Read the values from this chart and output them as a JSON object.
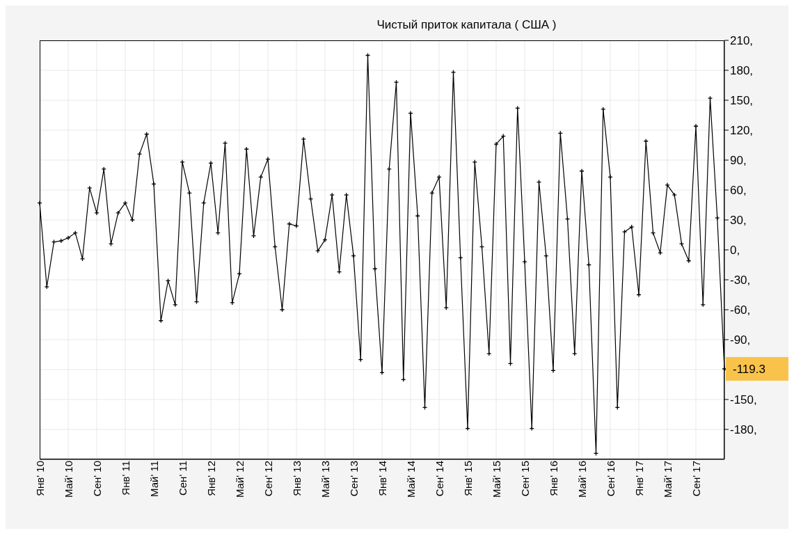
{
  "chart_data": {
    "type": "line",
    "title": "Чистый приток капитала ( США )",
    "categories": [
      "Янв' 10",
      null,
      null,
      null,
      "Май' 10",
      null,
      null,
      null,
      "Сен' 10",
      null,
      null,
      null,
      "Янв' 11",
      null,
      null,
      null,
      "Май' 11",
      null,
      null,
      null,
      "Сен' 11",
      null,
      null,
      null,
      "Янв' 12",
      null,
      null,
      null,
      "Май' 12",
      null,
      null,
      null,
      "Сен' 12",
      null,
      null,
      null,
      "Янв' 13",
      null,
      null,
      null,
      "Май' 13",
      null,
      null,
      null,
      "Сен' 13",
      null,
      null,
      null,
      "Янв' 14",
      null,
      null,
      null,
      "Май' 14",
      null,
      null,
      null,
      "Сен' 14",
      null,
      null,
      null,
      "Янв' 15",
      null,
      null,
      null,
      "Май' 15",
      null,
      null,
      null,
      "Сен' 15",
      null,
      null,
      null,
      "Янв' 16",
      null,
      null,
      null,
      "Май' 16",
      null,
      null,
      null,
      "Сен' 16",
      null,
      null,
      null,
      "Янв' 17",
      null,
      null,
      null,
      "Май' 17",
      null,
      null,
      null,
      "Сен' 17",
      null,
      null,
      null,
      null
    ],
    "series": [
      {
        "color": "#000000",
        "values": [
          47,
          -37,
          8,
          9,
          12,
          17,
          -9,
          62,
          37,
          81,
          6,
          37,
          47,
          30,
          96,
          116,
          66,
          -71,
          -31,
          -55,
          88,
          57,
          -52,
          47,
          87,
          17,
          107,
          -53,
          -24,
          101,
          14,
          73,
          91,
          3,
          -60,
          26,
          24,
          111,
          51,
          -1,
          10,
          55,
          -22,
          55,
          -6,
          -110,
          195,
          -19,
          -123,
          81,
          168,
          -130,
          137,
          34,
          -158,
          57,
          73,
          -58,
          178,
          -8,
          -179,
          88,
          3,
          -104,
          106,
          114,
          -114,
          142,
          -12,
          -179,
          68,
          -6,
          -121,
          117,
          31,
          -104,
          79,
          -15,
          -204,
          141,
          73,
          -158,
          18,
          23,
          -45,
          109,
          17,
          -3,
          65,
          55,
          6,
          -11,
          124,
          -55,
          152,
          32,
          -119.3
        ],
        "value_labels": [
          null,
          null,
          null,
          null,
          null,
          null,
          null,
          null,
          null,
          null,
          null,
          null,
          null,
          null,
          null,
          null,
          null,
          null,
          null,
          null,
          null,
          null,
          null,
          null,
          null,
          null,
          null,
          null,
          null,
          null,
          null,
          null,
          null,
          null,
          null,
          null,
          null,
          null,
          null,
          null,
          null,
          null,
          null,
          null,
          null,
          null,
          null,
          null,
          null,
          null,
          null,
          null,
          null,
          null,
          null,
          null,
          null,
          null,
          null,
          null,
          null,
          null,
          null,
          null,
          null,
          null,
          null,
          null,
          null,
          null,
          null,
          null,
          null,
          null,
          null,
          null,
          null,
          null,
          null,
          null,
          null,
          null,
          null,
          null,
          null,
          null,
          null,
          null,
          null,
          null,
          null,
          null,
          null,
          null,
          null,
          null,
          "-119.3"
        ]
      }
    ],
    "ylim": [
      -210,
      210
    ],
    "yticks": [
      {
        "value": -180,
        "label": "-180,"
      },
      {
        "value": -150,
        "label": "-150,"
      },
      {
        "value": -120,
        "label": null
      },
      {
        "value": -90,
        "label": "-90,"
      },
      {
        "value": -60,
        "label": "-60,"
      },
      {
        "value": -30,
        "label": "-30,"
      },
      {
        "value": 0,
        "label": "0,"
      },
      {
        "value": 30,
        "label": "30,"
      },
      {
        "value": 60,
        "label": "60,"
      },
      {
        "value": 90,
        "label": "90,"
      },
      {
        "value": 120,
        "label": "120,"
      },
      {
        "value": 150,
        "label": "150,"
      },
      {
        "value": 180,
        "label": "180,"
      },
      {
        "value": 210,
        "label": "210,"
      }
    ],
    "grid": true,
    "marker": "cross",
    "line_style": "solid"
  }
}
